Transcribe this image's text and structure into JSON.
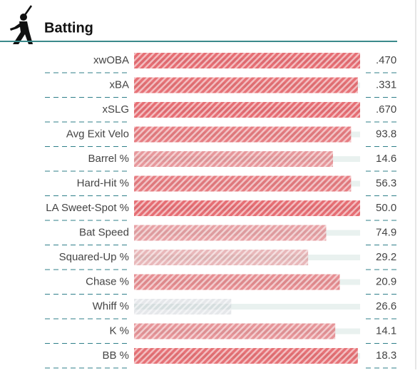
{
  "header": {
    "title": "Batting"
  },
  "rows": [
    {
      "label": "xwOBA",
      "value": ".470",
      "percentile": 100
    },
    {
      "label": "xBA",
      "value": ".331",
      "percentile": 99
    },
    {
      "label": "xSLG",
      "value": ".670",
      "percentile": 100
    },
    {
      "label": "Avg Exit Velo",
      "value": "93.8",
      "percentile": 96
    },
    {
      "label": "Barrel %",
      "value": "14.6",
      "percentile": 88
    },
    {
      "label": "Hard-Hit %",
      "value": "56.3",
      "percentile": 96
    },
    {
      "label": "LA Sweet-Spot %",
      "value": "50.0",
      "percentile": 100
    },
    {
      "label": "Bat Speed",
      "value": "74.9",
      "percentile": 85
    },
    {
      "label": "Squared-Up %",
      "value": "29.2",
      "percentile": 77
    },
    {
      "label": "Chase %",
      "value": "20.9",
      "percentile": 91
    },
    {
      "label": "Whiff %",
      "value": "26.6",
      "percentile": 43
    },
    {
      "label": "K %",
      "value": "14.1",
      "percentile": 89
    },
    {
      "label": "BB %",
      "value": "18.3",
      "percentile": 99
    }
  ]
}
